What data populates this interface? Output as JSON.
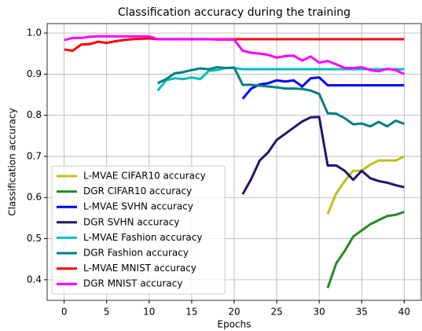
{
  "chart_data": {
    "type": "line",
    "title": "Classification accuracy during the training",
    "xlabel": "Epochs",
    "ylabel": "Classification accuracy",
    "x": [
      0,
      1,
      2,
      3,
      4,
      5,
      6,
      7,
      8,
      9,
      10,
      11,
      12,
      13,
      14,
      15,
      16,
      17,
      18,
      19,
      20,
      21,
      22,
      23,
      24,
      25,
      26,
      27,
      28,
      29,
      30,
      31,
      32,
      33,
      34,
      35,
      36,
      37,
      38,
      39,
      40
    ],
    "xlim": [
      -2,
      42
    ],
    "xticks": [
      0,
      5,
      10,
      15,
      20,
      25,
      30,
      35,
      40
    ],
    "ylim": [
      0.35,
      1.023
    ],
    "yticks": [
      0.4,
      0.5,
      0.6,
      0.7,
      0.8,
      0.9,
      {
        "value": 1,
        "label": "1.0"
      }
    ],
    "grid": true,
    "legend": "lower left",
    "series": [
      {
        "name": "L-MVAE CIFAR10 accuracy",
        "color": "#bfbf1c",
        "values": [
          null,
          null,
          null,
          null,
          null,
          null,
          null,
          null,
          null,
          null,
          null,
          null,
          null,
          null,
          null,
          null,
          null,
          null,
          null,
          null,
          null,
          null,
          null,
          null,
          null,
          null,
          null,
          null,
          null,
          null,
          null,
          0.56,
          0.61,
          0.64,
          0.665,
          0.665,
          0.68,
          0.69,
          0.69,
          0.69,
          0.7
        ]
      },
      {
        "name": "DGR CIFAR10 accuracy",
        "color": "#228b22",
        "values": [
          null,
          null,
          null,
          null,
          null,
          null,
          null,
          null,
          null,
          null,
          null,
          null,
          null,
          null,
          null,
          null,
          null,
          null,
          null,
          null,
          null,
          null,
          null,
          null,
          null,
          null,
          null,
          null,
          null,
          null,
          null,
          0.38,
          0.44,
          0.47,
          0.505,
          0.52,
          0.535,
          0.545,
          0.555,
          0.558,
          0.565
        ]
      },
      {
        "name": "L-MVAE SVHN accuracy",
        "color": "#0000ff",
        "values": [
          null,
          null,
          null,
          null,
          null,
          null,
          null,
          null,
          null,
          null,
          null,
          null,
          null,
          null,
          null,
          null,
          null,
          null,
          null,
          null,
          null,
          0.84,
          0.865,
          0.875,
          0.878,
          0.885,
          0.882,
          0.885,
          0.87,
          0.89,
          0.892,
          0.873,
          0.873,
          0.873,
          0.873,
          0.873,
          0.873,
          0.873,
          0.873,
          0.873,
          0.873
        ]
      },
      {
        "name": "DGR SVHN accuracy",
        "color": "#191970",
        "values": [
          null,
          null,
          null,
          null,
          null,
          null,
          null,
          null,
          null,
          null,
          null,
          null,
          null,
          null,
          null,
          null,
          null,
          null,
          null,
          null,
          null,
          0.608,
          0.645,
          0.69,
          0.71,
          0.74,
          0.755,
          0.77,
          0.785,
          0.795,
          0.796,
          0.678,
          0.678,
          0.665,
          0.643,
          0.665,
          0.647,
          0.64,
          0.636,
          0.63,
          0.625
        ]
      },
      {
        "name": "L-MVAE Fashion accuracy",
        "color": "#00bfbf",
        "values": [
          null,
          null,
          null,
          null,
          null,
          null,
          null,
          null,
          null,
          null,
          null,
          0.86,
          0.885,
          0.89,
          0.888,
          0.892,
          0.888,
          0.908,
          0.91,
          0.915,
          0.915,
          0.912,
          0.912,
          0.912,
          0.912,
          0.912,
          0.912,
          0.912,
          0.912,
          0.912,
          0.912,
          0.912,
          0.912,
          0.912,
          0.912,
          0.912,
          0.912,
          0.912,
          0.912,
          0.912,
          0.912
        ]
      },
      {
        "name": "DGR Fashion accuracy",
        "color": "#008080",
        "values": [
          null,
          null,
          null,
          null,
          null,
          null,
          null,
          null,
          null,
          null,
          null,
          0.878,
          0.888,
          0.902,
          0.905,
          0.91,
          0.914,
          0.912,
          0.917,
          0.915,
          0.916,
          0.874,
          0.874,
          0.872,
          0.87,
          0.868,
          0.865,
          0.865,
          0.864,
          0.86,
          0.852,
          0.805,
          0.804,
          0.793,
          0.778,
          0.78,
          0.773,
          0.784,
          0.773,
          0.787,
          0.779
        ]
      },
      {
        "name": "L-MVAE MNIST accuracy",
        "color": "#ff0000",
        "values": [
          0.96,
          0.957,
          0.972,
          0.973,
          0.979,
          0.976,
          0.98,
          0.983,
          0.985,
          0.986,
          0.987,
          0.985,
          0.985,
          0.985,
          0.985,
          0.985,
          0.985,
          0.985,
          0.985,
          0.985,
          0.985,
          0.985,
          0.985,
          0.985,
          0.985,
          0.985,
          0.985,
          0.985,
          0.985,
          0.985,
          0.985,
          0.985,
          0.985,
          0.985,
          0.985,
          0.985,
          0.985,
          0.985,
          0.985,
          0.985,
          0.985
        ]
      },
      {
        "name": "DGR MNIST accuracy",
        "color": "#ff00ff",
        "values": [
          0.983,
          0.988,
          0.988,
          0.991,
          0.992,
          0.992,
          0.992,
          0.992,
          0.992,
          0.992,
          0.992,
          0.985,
          0.985,
          0.985,
          0.985,
          0.985,
          0.985,
          0.985,
          0.984,
          0.984,
          0.984,
          0.957,
          0.952,
          0.95,
          0.947,
          0.94,
          0.944,
          0.945,
          0.933,
          0.943,
          0.928,
          0.932,
          0.924,
          0.915,
          0.915,
          0.917,
          0.91,
          0.907,
          0.913,
          0.91,
          0.9
        ]
      }
    ]
  }
}
